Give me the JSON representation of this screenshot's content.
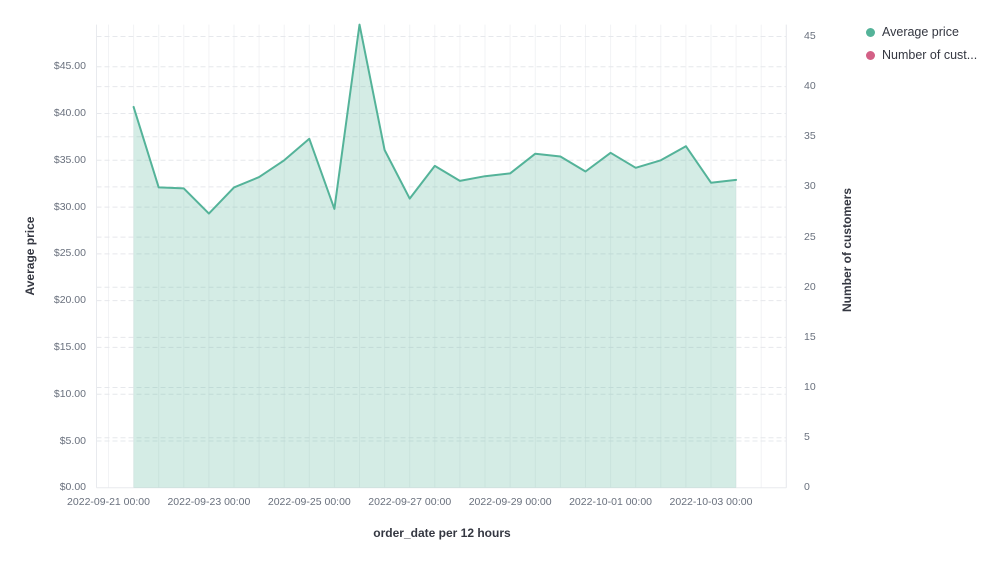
{
  "legend": {
    "items": [
      {
        "label": "Average price",
        "color": "#54B399"
      },
      {
        "label": "Number of cust...",
        "color": "#D36086"
      }
    ]
  },
  "chart_data": {
    "type": "area",
    "title": "",
    "xlabel": "order_date per 12 hours",
    "ylabel_left": "Average price",
    "ylabel_right": "Number of customers",
    "legend_position": "top-right",
    "grid": true,
    "ylim_left": [
      0,
      49.5
    ],
    "ylim_right": [
      0,
      45
    ],
    "left_axis": {
      "tick_values": [
        0,
        5,
        10,
        15,
        20,
        25,
        30,
        35,
        40,
        45
      ],
      "tick_labels": [
        "$0.00",
        "$5.00",
        "$10.00",
        "$15.00",
        "$20.00",
        "$25.00",
        "$30.00",
        "$35.00",
        "$40.00",
        "$45.00"
      ]
    },
    "right_axis": {
      "tick_values": [
        0,
        5,
        10,
        15,
        20,
        25,
        30,
        35,
        40,
        45
      ],
      "tick_labels": [
        "0",
        "5",
        "10",
        "15",
        "20",
        "25",
        "30",
        "35",
        "40",
        "45"
      ]
    },
    "x_tick_labels": [
      "2022-09-21 00:00",
      "2022-09-23 00:00",
      "2022-09-25 00:00",
      "2022-09-27 00:00",
      "2022-09-29 00:00",
      "2022-10-01 00:00",
      "2022-10-03 00:00"
    ],
    "x": [
      "2022-09-21 12:00",
      "2022-09-22 00:00",
      "2022-09-22 12:00",
      "2022-09-23 00:00",
      "2022-09-23 12:00",
      "2022-09-24 00:00",
      "2022-09-24 12:00",
      "2022-09-25 00:00",
      "2022-09-25 12:00",
      "2022-09-26 00:00",
      "2022-09-26 12:00",
      "2022-09-27 00:00",
      "2022-09-27 12:00",
      "2022-09-28 00:00",
      "2022-09-28 12:00",
      "2022-09-29 00:00",
      "2022-09-29 12:00",
      "2022-09-30 00:00",
      "2022-09-30 12:00",
      "2022-10-01 00:00",
      "2022-10-01 12:00",
      "2022-10-02 00:00",
      "2022-10-02 12:00",
      "2022-10-03 00:00",
      "2022-10-03 12:00"
    ],
    "series": [
      {
        "name": "Average price",
        "color": "#54B399",
        "values": [
          40.7,
          32.1,
          32.0,
          29.3,
          32.1,
          33.2,
          35.0,
          37.3,
          29.8,
          49.5,
          36.1,
          30.9,
          34.4,
          32.8,
          33.3,
          33.6,
          35.7,
          35.4,
          33.8,
          35.8,
          34.2,
          35.0,
          36.5,
          32.6,
          32.9
        ]
      },
      {
        "name": "Number of cust...",
        "color": "#D36086",
        "values": []
      }
    ]
  }
}
